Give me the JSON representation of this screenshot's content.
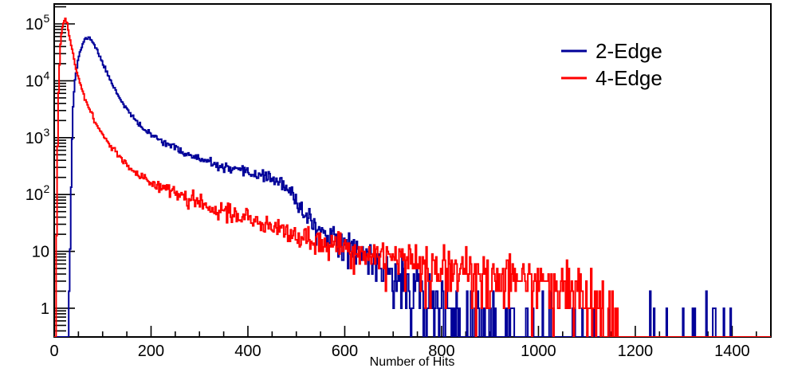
{
  "figure": {
    "background": "#ffffff"
  },
  "chart_data": {
    "type": "histogram",
    "title": "",
    "xlabel": "Number of Hits",
    "ylabel": "",
    "x_range": [
      0,
      1480
    ],
    "y_range": [
      0.313,
      224000
    ],
    "y_scale": "log",
    "grid": false,
    "x_major_ticks": [
      0,
      200,
      400,
      600,
      800,
      1000,
      1200,
      1400
    ],
    "x_minor_step": 50,
    "y_major_ticks": [
      {
        "value": 1,
        "base": "1",
        "exp": ""
      },
      {
        "value": 10,
        "base": "10",
        "exp": ""
      },
      {
        "value": 100,
        "base": "10",
        "exp": "2"
      },
      {
        "value": 1000,
        "base": "10",
        "exp": "3"
      },
      {
        "value": 10000,
        "base": "10",
        "exp": "4"
      },
      {
        "value": 100000,
        "base": "10",
        "exp": "5"
      }
    ],
    "legend_position": "top-right",
    "legend": [
      {
        "label": "2-Edge",
        "color": "#000099"
      },
      {
        "label": "4-Edge",
        "color": "#ff0000"
      }
    ],
    "bin_width": 2,
    "series": [
      {
        "name": "2-Edge",
        "color": "#000099",
        "seed": 11,
        "anchors": [
          [
            28,
            0.25
          ],
          [
            30,
            0.5
          ],
          [
            31,
            1.2
          ],
          [
            32,
            3
          ],
          [
            33,
            9
          ],
          [
            34,
            40
          ],
          [
            35,
            140
          ],
          [
            36,
            450
          ],
          [
            37,
            1000
          ],
          [
            38,
            2200
          ],
          [
            40,
            5200
          ],
          [
            42,
            8500
          ],
          [
            44,
            12000
          ],
          [
            47,
            17500
          ],
          [
            50,
            24000
          ],
          [
            53,
            31000
          ],
          [
            56,
            38000
          ],
          [
            59,
            44000
          ],
          [
            62,
            50000
          ],
          [
            65,
            54500
          ],
          [
            67,
            56500
          ],
          [
            70,
            57500
          ],
          [
            73,
            56500
          ],
          [
            76,
            53500
          ],
          [
            80,
            48000
          ],
          [
            84,
            41500
          ],
          [
            88,
            35000
          ],
          [
            92,
            29500
          ],
          [
            96,
            24500
          ],
          [
            100,
            20500
          ],
          [
            105,
            16500
          ],
          [
            110,
            13200
          ],
          [
            115,
            10800
          ],
          [
            120,
            8900
          ],
          [
            126,
            7000
          ],
          [
            132,
            5600
          ],
          [
            138,
            4600
          ],
          [
            144,
            3800
          ],
          [
            151,
            3100
          ],
          [
            158,
            2550
          ],
          [
            166,
            2100
          ],
          [
            174,
            1750
          ],
          [
            182,
            1500
          ],
          [
            191,
            1280
          ],
          [
            200,
            1120
          ],
          [
            210,
            1000
          ],
          [
            220,
            920
          ],
          [
            232,
            810
          ],
          [
            244,
            700
          ],
          [
            256,
            615
          ],
          [
            268,
            545
          ],
          [
            280,
            490
          ],
          [
            293,
            440
          ],
          [
            306,
            400
          ],
          [
            320,
            360
          ],
          [
            334,
            328
          ],
          [
            348,
            300
          ],
          [
            362,
            278
          ],
          [
            376,
            260
          ],
          [
            390,
            248
          ],
          [
            404,
            238
          ],
          [
            418,
            228
          ],
          [
            430,
            215
          ],
          [
            442,
            200
          ],
          [
            452,
            188
          ],
          [
            462,
            170
          ],
          [
            472,
            146
          ],
          [
            482,
            118
          ],
          [
            492,
            92
          ],
          [
            502,
            70
          ],
          [
            512,
            55
          ],
          [
            522,
            44
          ],
          [
            532,
            35
          ],
          [
            544,
            27.5
          ],
          [
            556,
            22
          ],
          [
            568,
            18.5
          ],
          [
            582,
            16
          ],
          [
            596,
            14
          ],
          [
            610,
            12.5
          ],
          [
            625,
            10.5
          ],
          [
            640,
            8.8
          ],
          [
            655,
            7.2
          ],
          [
            670,
            5.9
          ],
          [
            685,
            4.8
          ],
          [
            700,
            4
          ],
          [
            716,
            3.2
          ],
          [
            732,
            2.6
          ],
          [
            750,
            2
          ],
          [
            768,
            1.55
          ],
          [
            786,
            1.2
          ],
          [
            806,
            0.95
          ],
          [
            828,
            0.75
          ],
          [
            852,
            0.6
          ],
          [
            878,
            0.48
          ],
          [
            906,
            0.4
          ],
          [
            936,
            0.33
          ],
          [
            968,
            0.28
          ],
          [
            1000,
            0.24
          ],
          [
            1040,
            0.2
          ],
          [
            1080,
            0.17
          ],
          [
            1120,
            0.14
          ],
          [
            1170,
            0.12
          ],
          [
            1230,
            0.1
          ],
          [
            1300,
            0.09
          ],
          [
            1380,
            0.08
          ],
          [
            1480,
            0.075
          ]
        ]
      },
      {
        "name": "4-Edge",
        "color": "#ff0000",
        "seed": 7,
        "anchors": [
          [
            2,
            0.2
          ],
          [
            3,
            0.5
          ],
          [
            4,
            2.5
          ],
          [
            5,
            18
          ],
          [
            6,
            130
          ],
          [
            7,
            700
          ],
          [
            8,
            2400
          ],
          [
            9,
            6000
          ],
          [
            10,
            12000
          ],
          [
            11,
            20000
          ],
          [
            12,
            31000
          ],
          [
            13,
            43000
          ],
          [
            14,
            56000
          ],
          [
            15,
            68000
          ],
          [
            16,
            79000
          ],
          [
            17,
            88000
          ],
          [
            18,
            96000
          ],
          [
            19,
            103000
          ],
          [
            20,
            108000
          ],
          [
            21,
            113000
          ],
          [
            22,
            117500
          ],
          [
            23,
            120000
          ],
          [
            24,
            119000
          ],
          [
            26,
            105000
          ],
          [
            28,
            88000
          ],
          [
            30,
            72000
          ],
          [
            32,
            58000
          ],
          [
            34,
            47000
          ],
          [
            36,
            38500
          ],
          [
            38,
            31500
          ],
          [
            40,
            26000
          ],
          [
            42,
            21500
          ],
          [
            44,
            18000
          ],
          [
            46,
            15300
          ],
          [
            48,
            13200
          ],
          [
            50,
            11500
          ],
          [
            53,
            9400
          ],
          [
            56,
            7800
          ],
          [
            60,
            6100
          ],
          [
            64,
            4900
          ],
          [
            68,
            4000
          ],
          [
            72,
            3300
          ],
          [
            76,
            2750
          ],
          [
            80,
            2300
          ],
          [
            85,
            1870
          ],
          [
            90,
            1560
          ],
          [
            95,
            1320
          ],
          [
            100,
            1130
          ],
          [
            106,
            950
          ],
          [
            112,
            800
          ],
          [
            118,
            680
          ],
          [
            124,
            580
          ],
          [
            130,
            520
          ],
          [
            137,
            450
          ],
          [
            144,
            390
          ],
          [
            152,
            330
          ],
          [
            160,
            285
          ],
          [
            169,
            245
          ],
          [
            178,
            212
          ],
          [
            188,
            185
          ],
          [
            198,
            163
          ],
          [
            209,
            146
          ],
          [
            220,
            131
          ],
          [
            232,
            117
          ],
          [
            244,
            105
          ],
          [
            257,
            95
          ],
          [
            270,
            86
          ],
          [
            284,
            78
          ],
          [
            298,
            71
          ],
          [
            312,
            64
          ],
          [
            327,
            58
          ],
          [
            342,
            53
          ],
          [
            357,
            48
          ],
          [
            372,
            44
          ],
          [
            388,
            40
          ],
          [
            404,
            36
          ],
          [
            420,
            32.5
          ],
          [
            436,
            29.5
          ],
          [
            452,
            26.5
          ],
          [
            468,
            24
          ],
          [
            484,
            22
          ],
          [
            500,
            20
          ],
          [
            518,
            18
          ],
          [
            536,
            16.4
          ],
          [
            554,
            15
          ],
          [
            572,
            13.7
          ],
          [
            590,
            12.6
          ],
          [
            610,
            11.5
          ],
          [
            630,
            10.6
          ],
          [
            650,
            9.8
          ],
          [
            672,
            9
          ],
          [
            694,
            8.3
          ],
          [
            716,
            7.6
          ],
          [
            740,
            7
          ],
          [
            764,
            6.4
          ],
          [
            790,
            5.9
          ],
          [
            816,
            5.4
          ],
          [
            844,
            4.9
          ],
          [
            872,
            4.5
          ],
          [
            900,
            4.1
          ],
          [
            930,
            3.7
          ],
          [
            960,
            3.4
          ],
          [
            990,
            3.1
          ],
          [
            1020,
            2.8
          ],
          [
            1050,
            2.5
          ],
          [
            1075,
            2.2
          ],
          [
            1095,
            1.9
          ],
          [
            1112,
            1.6
          ],
          [
            1126,
            1.25
          ],
          [
            1138,
            0.95
          ],
          [
            1148,
            0.7
          ],
          [
            1158,
            0.45
          ],
          [
            1166,
            0.28
          ],
          [
            1172,
            0.15
          ]
        ]
      }
    ]
  }
}
